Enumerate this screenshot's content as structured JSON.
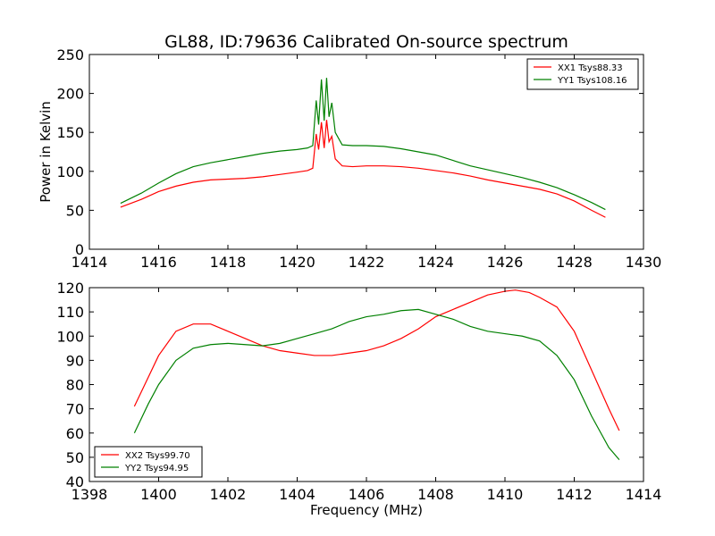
{
  "chart_data": [
    {
      "type": "line",
      "title": "GL88, ID:79636 Calibrated On-source spectrum",
      "xlabel": "",
      "ylabel": "Power in Kelvin",
      "xlim": [
        1414,
        1430
      ],
      "ylim": [
        0,
        250
      ],
      "xticks": [
        1414,
        1416,
        1418,
        1420,
        1422,
        1424,
        1426,
        1428,
        1430
      ],
      "yticks": [
        0,
        50,
        100,
        150,
        200,
        250
      ],
      "grid": false,
      "legend_position": "top-right",
      "series": [
        {
          "name": "XX1 Tsys88.33",
          "color": "#ff0000",
          "points": [
            [
              1414.9,
              54
            ],
            [
              1415.5,
              64
            ],
            [
              1416,
              74
            ],
            [
              1416.5,
              81
            ],
            [
              1417,
              86
            ],
            [
              1417.5,
              89
            ],
            [
              1418,
              90
            ],
            [
              1418.5,
              91
            ],
            [
              1419,
              93
            ],
            [
              1419.5,
              96
            ],
            [
              1420,
              99
            ],
            [
              1420.3,
              101
            ],
            [
              1420.45,
              104
            ],
            [
              1420.55,
              148
            ],
            [
              1420.62,
              128
            ],
            [
              1420.7,
              163
            ],
            [
              1420.78,
              130
            ],
            [
              1420.85,
              166
            ],
            [
              1420.92,
              138
            ],
            [
              1421.0,
              145
            ],
            [
              1421.1,
              116
            ],
            [
              1421.3,
              107
            ],
            [
              1421.6,
              106
            ],
            [
              1422,
              107
            ],
            [
              1422.5,
              107
            ],
            [
              1423,
              106
            ],
            [
              1423.5,
              104
            ],
            [
              1424,
              101
            ],
            [
              1424.5,
              98
            ],
            [
              1425,
              94
            ],
            [
              1425.5,
              89
            ],
            [
              1426,
              85
            ],
            [
              1426.5,
              81
            ],
            [
              1427,
              77
            ],
            [
              1427.5,
              71
            ],
            [
              1428,
              62
            ],
            [
              1428.5,
              50
            ],
            [
              1428.9,
              41
            ]
          ]
        },
        {
          "name": "YY1 Tsys108.16",
          "color": "#008000",
          "points": [
            [
              1414.9,
              59
            ],
            [
              1415.5,
              72
            ],
            [
              1416,
              85
            ],
            [
              1416.5,
              97
            ],
            [
              1417,
              106
            ],
            [
              1417.5,
              111
            ],
            [
              1418,
              115
            ],
            [
              1418.5,
              119
            ],
            [
              1419,
              123
            ],
            [
              1419.5,
              126
            ],
            [
              1420,
              128
            ],
            [
              1420.3,
              130
            ],
            [
              1420.45,
              133
            ],
            [
              1420.55,
              191
            ],
            [
              1420.62,
              160
            ],
            [
              1420.7,
              218
            ],
            [
              1420.78,
              165
            ],
            [
              1420.85,
              220
            ],
            [
              1420.92,
              170
            ],
            [
              1421.0,
              188
            ],
            [
              1421.1,
              150
            ],
            [
              1421.3,
              134
            ],
            [
              1421.6,
              133
            ],
            [
              1422,
              133
            ],
            [
              1422.5,
              132
            ],
            [
              1423,
              129
            ],
            [
              1423.5,
              125
            ],
            [
              1424,
              121
            ],
            [
              1424.5,
              114
            ],
            [
              1425,
              107
            ],
            [
              1425.5,
              102
            ],
            [
              1426,
              97
            ],
            [
              1426.5,
              92
            ],
            [
              1427,
              86
            ],
            [
              1427.5,
              79
            ],
            [
              1428,
              70
            ],
            [
              1428.5,
              60
            ],
            [
              1428.9,
              51
            ]
          ]
        }
      ]
    },
    {
      "type": "line",
      "title": "",
      "xlabel": "Frequency (MHz)",
      "ylabel": "",
      "xlim": [
        1398,
        1414
      ],
      "ylim": [
        40,
        120
      ],
      "xticks": [
        1398,
        1400,
        1402,
        1404,
        1406,
        1408,
        1410,
        1412,
        1414
      ],
      "yticks": [
        40,
        50,
        60,
        70,
        80,
        90,
        100,
        110,
        120
      ],
      "grid": false,
      "legend_position": "bottom-left",
      "series": [
        {
          "name": "XX2 Tsys99.70",
          "color": "#ff0000",
          "points": [
            [
              1399.3,
              71
            ],
            [
              1399.7,
              83
            ],
            [
              1400,
              92
            ],
            [
              1400.5,
              102
            ],
            [
              1401,
              105
            ],
            [
              1401.5,
              105
            ],
            [
              1402,
              102
            ],
            [
              1402.5,
              99
            ],
            [
              1403,
              96
            ],
            [
              1403.5,
              94
            ],
            [
              1404,
              93
            ],
            [
              1404.5,
              92
            ],
            [
              1405,
              92
            ],
            [
              1405.5,
              93
            ],
            [
              1406,
              94
            ],
            [
              1406.5,
              96
            ],
            [
              1407,
              99
            ],
            [
              1407.5,
              103
            ],
            [
              1408,
              108
            ],
            [
              1408.5,
              111
            ],
            [
              1409,
              114
            ],
            [
              1409.5,
              117
            ],
            [
              1410,
              118.5
            ],
            [
              1410.3,
              119
            ],
            [
              1410.7,
              118
            ],
            [
              1411,
              116
            ],
            [
              1411.5,
              112
            ],
            [
              1412,
              102
            ],
            [
              1412.5,
              86
            ],
            [
              1413,
              70
            ],
            [
              1413.3,
              61
            ]
          ]
        },
        {
          "name": "YY2 Tsys94.95",
          "color": "#008000",
          "points": [
            [
              1399.3,
              60
            ],
            [
              1399.7,
              72
            ],
            [
              1400,
              80
            ],
            [
              1400.5,
              90
            ],
            [
              1401,
              95
            ],
            [
              1401.5,
              96.5
            ],
            [
              1402,
              97
            ],
            [
              1402.5,
              96.5
            ],
            [
              1403,
              96
            ],
            [
              1403.5,
              97
            ],
            [
              1404,
              99
            ],
            [
              1404.5,
              101
            ],
            [
              1405,
              103
            ],
            [
              1405.5,
              106
            ],
            [
              1406,
              108
            ],
            [
              1406.5,
              109
            ],
            [
              1407,
              110.5
            ],
            [
              1407.5,
              111
            ],
            [
              1408,
              109
            ],
            [
              1408.5,
              107
            ],
            [
              1409,
              104
            ],
            [
              1409.5,
              102
            ],
            [
              1410,
              101
            ],
            [
              1410.5,
              100
            ],
            [
              1411,
              98
            ],
            [
              1411.5,
              92
            ],
            [
              1412,
              82
            ],
            [
              1412.5,
              67
            ],
            [
              1413,
              54
            ],
            [
              1413.3,
              49
            ]
          ]
        }
      ]
    }
  ]
}
